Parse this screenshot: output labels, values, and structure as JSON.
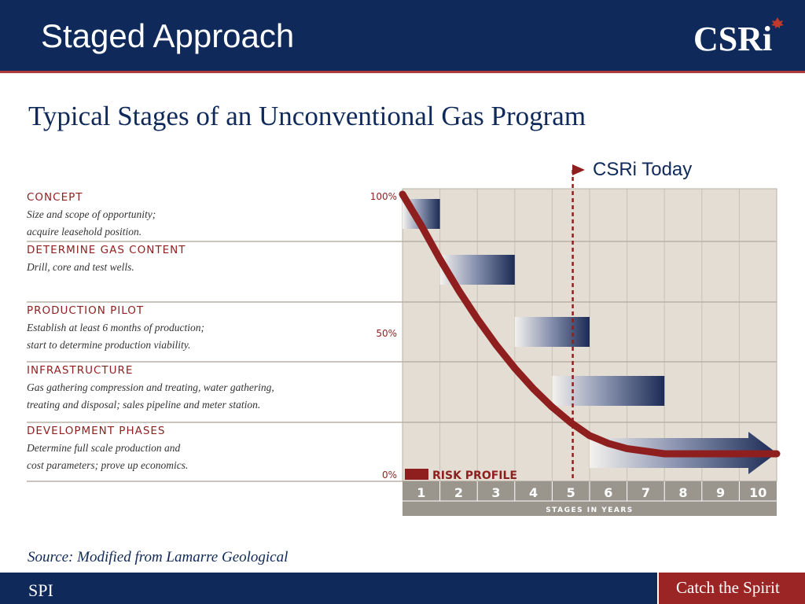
{
  "header": {
    "title": "Staged Approach",
    "logo_text": "CSRi"
  },
  "subtitle": "Typical Stages of an Unconventional Gas Program",
  "today_marker": {
    "label": "CSRi Today",
    "year": 4.55
  },
  "source": "Source: Modified from Lamarre Geological",
  "footer": {
    "left": "SPI",
    "tagline": "Catch the Spirit"
  },
  "colors": {
    "navy": "#0f2a5a",
    "risk_red": "#8f1f1f",
    "panel": "#e3ddd3"
  },
  "chart_data": {
    "type": "gantt",
    "xlabel": "STAGES IN YEARS",
    "x_ticks": [
      "1",
      "2",
      "3",
      "4",
      "5",
      "6",
      "7",
      "8",
      "9",
      "10"
    ],
    "xlim": [
      0,
      10
    ],
    "risk_axis_ticks": [
      "100%",
      "50%",
      "0%"
    ],
    "stages": [
      {
        "name": "CONCEPT",
        "desc": [
          "Size and scope of opportunity;",
          "acquire leasehold position."
        ],
        "start": 0,
        "end": 1
      },
      {
        "name": "DETERMINE GAS CONTENT",
        "desc": [
          "Drill, core and test wells."
        ],
        "start": 1,
        "end": 3
      },
      {
        "name": "PRODUCTION PILOT",
        "desc": [
          "Establish at least 6 months of production;",
          "start to determine production viability."
        ],
        "start": 3,
        "end": 5
      },
      {
        "name": "INFRASTRUCTURE",
        "desc": [
          "Gas gathering compression and treating, water gathering,",
          "treating and disposal; sales pipeline and meter station."
        ],
        "start": 4,
        "end": 7
      },
      {
        "name": "DEVELOPMENT PHASES",
        "desc": [
          "Determine full scale production and",
          "cost parameters; prove up economics."
        ],
        "start": 5,
        "end": 10,
        "arrow": true
      }
    ],
    "risk_profile": {
      "name": "RISK PROFILE",
      "x": [
        0,
        0.5,
        1,
        1.5,
        2,
        2.5,
        3,
        3.5,
        4,
        4.5,
        5,
        5.5,
        6,
        6.5,
        7,
        8,
        9,
        10
      ],
      "y": [
        100,
        88,
        75,
        63,
        52,
        42,
        33,
        25,
        18,
        12,
        7,
        4,
        2,
        1,
        0,
        0,
        0,
        0
      ]
    }
  }
}
